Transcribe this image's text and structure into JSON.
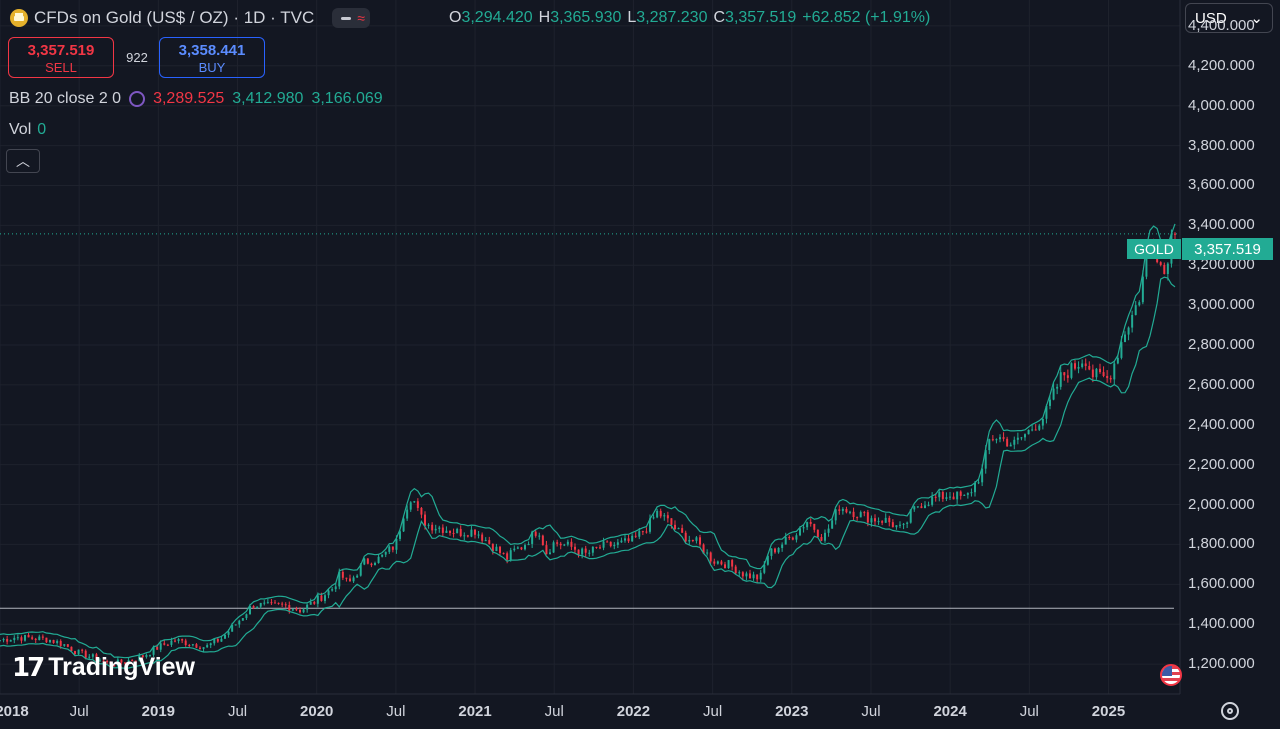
{
  "header": {
    "title": "CFDs on Gold (US$ / OZ) · 1D · TVC",
    "ohlc": {
      "o_label": "O",
      "o_value": "3,294.420",
      "h_label": "H",
      "h_value": "3,365.930",
      "l_label": "L",
      "l_value": "3,287.230",
      "c_label": "C",
      "c_value": "3,357.519",
      "change": "+62.852 (+1.91%)"
    }
  },
  "trade": {
    "sell_price": "3,357.519",
    "sell_label": "SELL",
    "spread": "922",
    "buy_price": "3,358.441",
    "buy_label": "BUY"
  },
  "indicators": {
    "bb_label": "BB 20 close 2 0",
    "bb_basis": "3,289.525",
    "bb_upper": "3,412.980",
    "bb_lower": "3,166.069",
    "vol_label": "Vol",
    "vol_value": "0"
  },
  "currency": "USD",
  "price_tag": {
    "symbol": "GOLD",
    "price": "3,357.519"
  },
  "watermark": "TradingView",
  "colors": {
    "background": "#131722",
    "up": "#22ab94",
    "down": "#f23645",
    "band": "#22ab94",
    "grid": "#1e222d"
  },
  "icons": {
    "logo": "gold-bar-icon",
    "collapse": "chevron-up-icon",
    "settings": "gear-icon",
    "flag": "us-flag-icon"
  },
  "chart_data": {
    "type": "line",
    "series_style": "candlestick-with-bollinger-bands",
    "ylim": [
      1050,
      4530
    ],
    "y_ticks": [
      "4,400.000",
      "4,200.000",
      "4,000.000",
      "3,800.000",
      "3,600.000",
      "3,400.000",
      "3,200.000",
      "3,000.000",
      "2,800.000",
      "2,600.000",
      "2,400.000",
      "2,200.000",
      "2,000.000",
      "1,800.000",
      "1,600.000",
      "1,400.000",
      "1,200.000"
    ],
    "y_tick_values": [
      4400,
      4200,
      4000,
      3800,
      3600,
      3400,
      3200,
      3000,
      2800,
      2600,
      2400,
      2200,
      2000,
      1800,
      1600,
      1400,
      1200
    ],
    "x_ticks": [
      "2018",
      "Jul",
      "2019",
      "Jul",
      "2020",
      "Jul",
      "2021",
      "Jul",
      "2022",
      "Jul",
      "2023",
      "Jul",
      "2024",
      "Jul",
      "2025"
    ],
    "x_tick_values": [
      2018.0,
      2018.5,
      2019.0,
      2019.5,
      2020.0,
      2020.5,
      2021.0,
      2021.5,
      2022.0,
      2022.5,
      2023.0,
      2023.5,
      2024.0,
      2024.5,
      2025.0
    ],
    "xlim": [
      2018.0,
      2025.42
    ],
    "last_price": 3357.519,
    "horizontal_line": 1480,
    "x": [
      2018.0,
      2018.1,
      2018.2,
      2018.3,
      2018.4,
      2018.5,
      2018.6,
      2018.7,
      2018.8,
      2018.9,
      2019.0,
      2019.1,
      2019.2,
      2019.3,
      2019.4,
      2019.5,
      2019.6,
      2019.7,
      2019.8,
      2019.9,
      2020.0,
      2020.1,
      2020.15,
      2020.2,
      2020.3,
      2020.4,
      2020.5,
      2020.55,
      2020.6,
      2020.65,
      2020.7,
      2020.8,
      2020.9,
      2021.0,
      2021.1,
      2021.2,
      2021.25,
      2021.3,
      2021.4,
      2021.45,
      2021.5,
      2021.6,
      2021.7,
      2021.8,
      2021.9,
      2022.0,
      2022.1,
      2022.15,
      2022.2,
      2022.3,
      2022.4,
      2022.5,
      2022.6,
      2022.7,
      2022.8,
      2022.85,
      2022.9,
      2023.0,
      2023.1,
      2023.2,
      2023.3,
      2023.4,
      2023.5,
      2023.6,
      2023.7,
      2023.75,
      2023.8,
      2023.9,
      2024.0,
      2024.1,
      2024.2,
      2024.25,
      2024.3,
      2024.4,
      2024.5,
      2024.6,
      2024.7,
      2024.8,
      2024.85,
      2024.9,
      2025.0,
      2025.05,
      2025.1,
      2025.15,
      2025.2,
      2025.25,
      2025.3,
      2025.35,
      2025.4
    ],
    "close": [
      1320,
      1335,
      1330,
      1325,
      1300,
      1255,
      1230,
      1200,
      1215,
      1240,
      1285,
      1320,
      1305,
      1285,
      1330,
      1410,
      1500,
      1490,
      1495,
      1470,
      1520,
      1580,
      1650,
      1600,
      1710,
      1730,
      1800,
      1960,
      2050,
      1940,
      1900,
      1880,
      1860,
      1870,
      1800,
      1730,
      1770,
      1790,
      1880,
      1760,
      1810,
      1790,
      1750,
      1790,
      1800,
      1820,
      1900,
      1960,
      1930,
      1850,
      1810,
      1720,
      1700,
      1650,
      1630,
      1750,
      1780,
      1840,
      1920,
      1830,
      1990,
      1960,
      1930,
      1920,
      1870,
      1950,
      2000,
      2030,
      2050,
      2030,
      2160,
      2330,
      2340,
      2300,
      2370,
      2450,
      2640,
      2700,
      2740,
      2650,
      2630,
      2740,
      2860,
      2950,
      3050,
      3300,
      3280,
      3150,
      3357.519
    ]
  }
}
